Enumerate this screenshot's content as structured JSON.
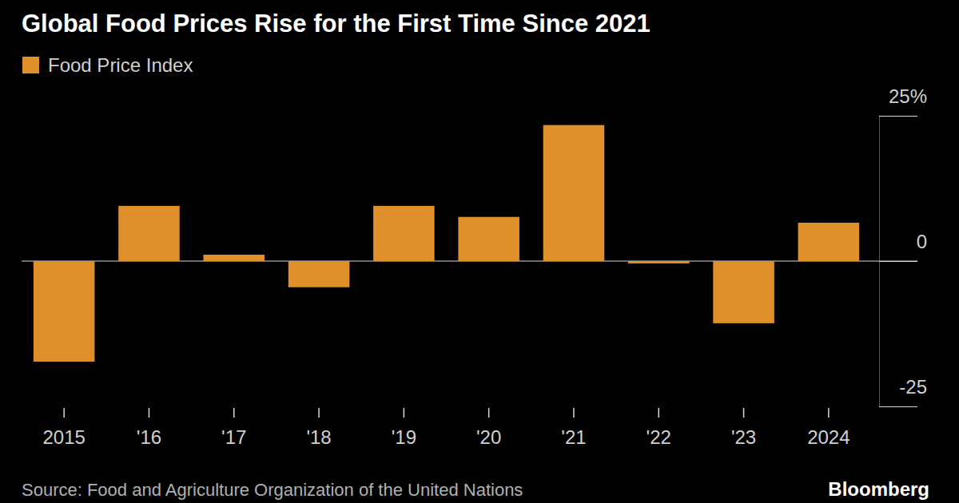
{
  "chart_data": {
    "type": "bar",
    "title": "Global Food Prices Rise for the First Time Since 2021",
    "source": "Source: Food and Agriculture Organization of the United Nations",
    "credit": "Bloomberg",
    "categories": [
      "2015",
      "'16",
      "'17",
      "'18",
      "'19",
      "'20",
      "'21",
      "'22",
      "'23",
      "2024"
    ],
    "series": [
      {
        "name": "Food Price Index",
        "color": "#e0902a",
        "values": [
          -17.3,
          9.5,
          1.1,
          -4.5,
          9.5,
          7.6,
          23.4,
          -0.4,
          -10.7,
          6.6
        ]
      }
    ],
    "ylim": [
      -25,
      25
    ],
    "yticks": [
      -25,
      0,
      {
        "value": 25,
        "label": "25%"
      }
    ],
    "grid": false
  }
}
